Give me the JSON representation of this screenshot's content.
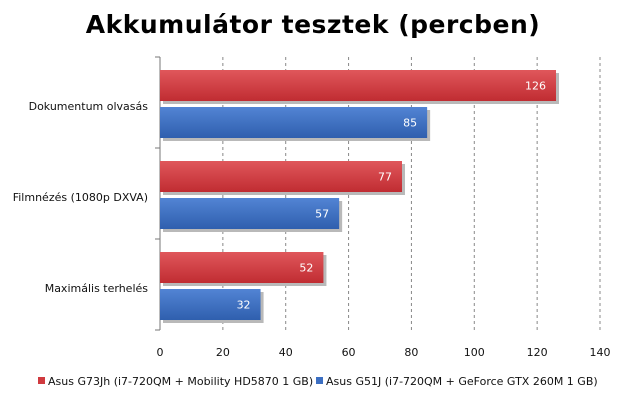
{
  "chart_data": {
    "type": "bar",
    "orientation": "horizontal",
    "title": "Akkumulátor tesztek (percben)",
    "categories": [
      "Dokumentum olvasás",
      "Filmnézés (1080p DXVA)",
      "Maximális terhelés"
    ],
    "series": [
      {
        "name": "Asus G73Jh (i7-720QM + Mobility HD5870 1 GB)",
        "color": "#d03a3f",
        "values": [
          126,
          77,
          52
        ]
      },
      {
        "name": "Asus G51J (i7-720QM + GeForce GTX 260M 1 GB)",
        "color": "#3c6fc2",
        "values": [
          85,
          57,
          32
        ]
      }
    ],
    "xlim": [
      0,
      140
    ],
    "xticks": [
      0,
      20,
      40,
      60,
      80,
      100,
      120,
      140
    ],
    "grid": "vertical dashed",
    "legend_position": "bottom"
  }
}
